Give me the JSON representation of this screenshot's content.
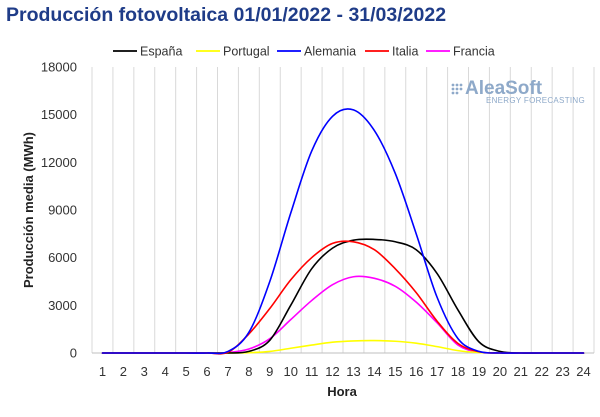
{
  "title": "Producción fotovoltaica 01/01/2022 - 31/03/2022",
  "logo": {
    "name": "AleaSoft",
    "tagline": "ENERGY FORECASTING"
  },
  "chart_data": {
    "type": "line",
    "title": "Producción fotovoltaica 01/01/2022 - 31/03/2022",
    "xlabel": "Hora",
    "ylabel": "Producción media (MWh)",
    "ylim": [
      0,
      18000
    ],
    "yticks": [
      0,
      3000,
      6000,
      9000,
      12000,
      15000,
      18000
    ],
    "ytick_labels": [
      "0",
      "3000",
      "6000",
      "9000",
      "12000",
      "15000",
      "18000"
    ],
    "grid": "vertical",
    "legend": "top",
    "categories": [
      1,
      2,
      3,
      4,
      5,
      6,
      7,
      8,
      9,
      10,
      11,
      12,
      13,
      14,
      15,
      16,
      17,
      18,
      19,
      20,
      21,
      22,
      23,
      24
    ],
    "category_labels": [
      "1",
      "2",
      "3",
      "4",
      "5",
      "6",
      "7",
      "8",
      "9",
      "10",
      "11",
      "12",
      "13",
      "14",
      "15",
      "16",
      "17",
      "18",
      "19",
      "20",
      "21",
      "22",
      "23",
      "24"
    ],
    "series": [
      {
        "name": "España",
        "color": "#000000",
        "values": [
          0,
          0,
          0,
          0,
          0,
          0,
          0,
          100,
          800,
          3000,
          5300,
          6600,
          7100,
          7150,
          7000,
          6500,
          5000,
          2700,
          700,
          100,
          0,
          0,
          0,
          0
        ]
      },
      {
        "name": "Portugal",
        "color": "#ffff00",
        "values": [
          0,
          0,
          0,
          0,
          0,
          0,
          0,
          20,
          100,
          300,
          500,
          680,
          760,
          780,
          740,
          620,
          400,
          150,
          30,
          0,
          0,
          0,
          0,
          0
        ]
      },
      {
        "name": "Alemania",
        "color": "#0000ff",
        "values": [
          0,
          0,
          0,
          0,
          0,
          0,
          100,
          1300,
          4500,
          8800,
          12700,
          14900,
          15300,
          14000,
          11300,
          7500,
          3500,
          900,
          100,
          0,
          0,
          0,
          0,
          0
        ]
      },
      {
        "name": "Italia",
        "color": "#ff0000",
        "values": [
          0,
          0,
          0,
          0,
          0,
          0,
          50,
          1200,
          2800,
          4600,
          6000,
          6900,
          7000,
          6500,
          5300,
          3800,
          2000,
          600,
          80,
          0,
          0,
          0,
          0,
          0
        ]
      },
      {
        "name": "Francia",
        "color": "#ff00ff",
        "values": [
          0,
          0,
          0,
          0,
          0,
          0,
          30,
          250,
          900,
          2100,
          3300,
          4300,
          4800,
          4700,
          4200,
          3200,
          1900,
          500,
          50,
          0,
          0,
          0,
          0,
          0
        ]
      }
    ]
  }
}
